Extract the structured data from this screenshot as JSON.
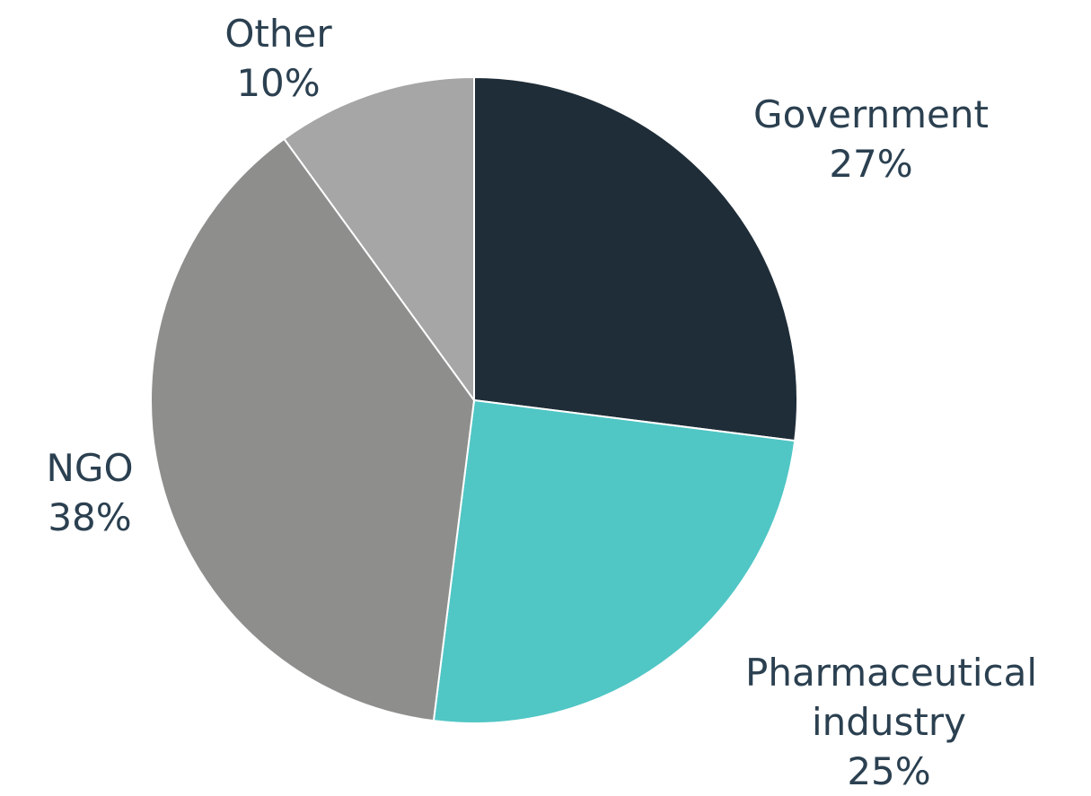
{
  "chart_data": {
    "type": "pie",
    "categories": [
      "Government",
      "Pharmaceutical industry",
      "NGO",
      "Other"
    ],
    "values": [
      27,
      25,
      38,
      10
    ],
    "value_labels": [
      "27%",
      "25%",
      "38%",
      "10%"
    ],
    "colors": [
      "#1f2d38",
      "#50c6c5",
      "#8e8e8d",
      "#a6a6a6"
    ]
  }
}
